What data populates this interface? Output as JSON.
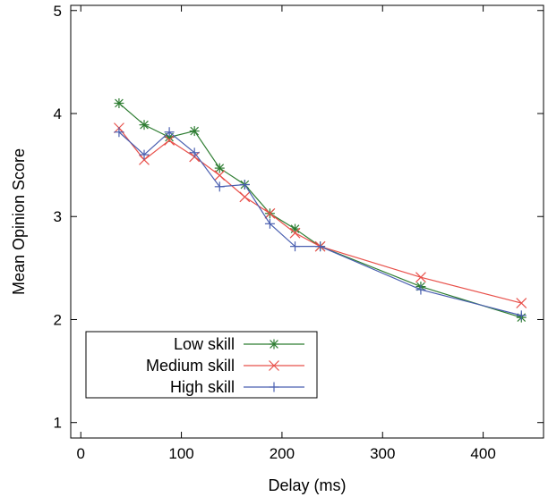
{
  "chart_data": {
    "type": "line",
    "xlabel": "Delay (ms)",
    "ylabel": "Mean Opinion Score",
    "xlim": [
      -10,
      460
    ],
    "ylim": [
      0.85,
      5.05
    ],
    "xticks": [
      0,
      100,
      200,
      300,
      400
    ],
    "yticks": [
      1,
      2,
      3,
      4,
      5
    ],
    "xtick_labels": [
      "0",
      "100",
      "200",
      "300",
      "400"
    ],
    "ytick_labels": [
      "1",
      "2",
      "3",
      "4",
      "5"
    ],
    "grid": false,
    "legend_position": "bottom-left",
    "series": [
      {
        "name": "Low skill",
        "color": "#2e7d32",
        "marker": "asterisk",
        "x": [
          38,
          63,
          88,
          113,
          138,
          163,
          188,
          213,
          238,
          338,
          438
        ],
        "y": [
          4.1,
          3.89,
          3.77,
          3.83,
          3.47,
          3.31,
          3.03,
          2.88,
          2.71,
          2.32,
          2.02
        ]
      },
      {
        "name": "Medium skill",
        "color": "#e8504a",
        "marker": "x",
        "x": [
          38,
          63,
          88,
          113,
          138,
          163,
          188,
          213,
          238,
          338,
          438
        ],
        "y": [
          3.86,
          3.55,
          3.74,
          3.58,
          3.4,
          3.19,
          3.03,
          2.84,
          2.71,
          2.41,
          2.16
        ]
      },
      {
        "name": "High skill",
        "color": "#4a5fb0",
        "marker": "plus",
        "x": [
          38,
          63,
          88,
          113,
          138,
          163,
          188,
          213,
          238,
          338,
          438
        ],
        "y": [
          3.82,
          3.6,
          3.82,
          3.62,
          3.29,
          3.31,
          2.93,
          2.71,
          2.71,
          2.29,
          2.04
        ]
      }
    ]
  }
}
